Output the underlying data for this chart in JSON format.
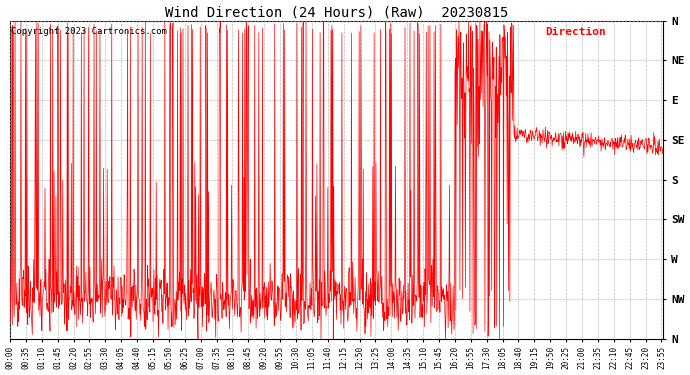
{
  "title": "Wind Direction (24 Hours) (Raw)  20230815",
  "copyright": "Copyright 2023 Cartronics.com",
  "legend_label": "Direction",
  "background_color": "#ffffff",
  "plot_bg_color": "#ffffff",
  "line_color": "#ff0000",
  "grid_color": "#aaaaaa",
  "ytick_labels_top_to_bottom": [
    "N",
    "NW",
    "W",
    "SW",
    "S",
    "SE",
    "E",
    "NE",
    "N"
  ],
  "ytick_values_top_to_bottom": [
    360,
    315,
    270,
    225,
    180,
    135,
    90,
    45,
    0
  ],
  "ymin": 0,
  "ymax": 360,
  "xmin": 0,
  "xmax": 1439,
  "figsize": [
    6.9,
    3.75
  ],
  "dpi": 100
}
